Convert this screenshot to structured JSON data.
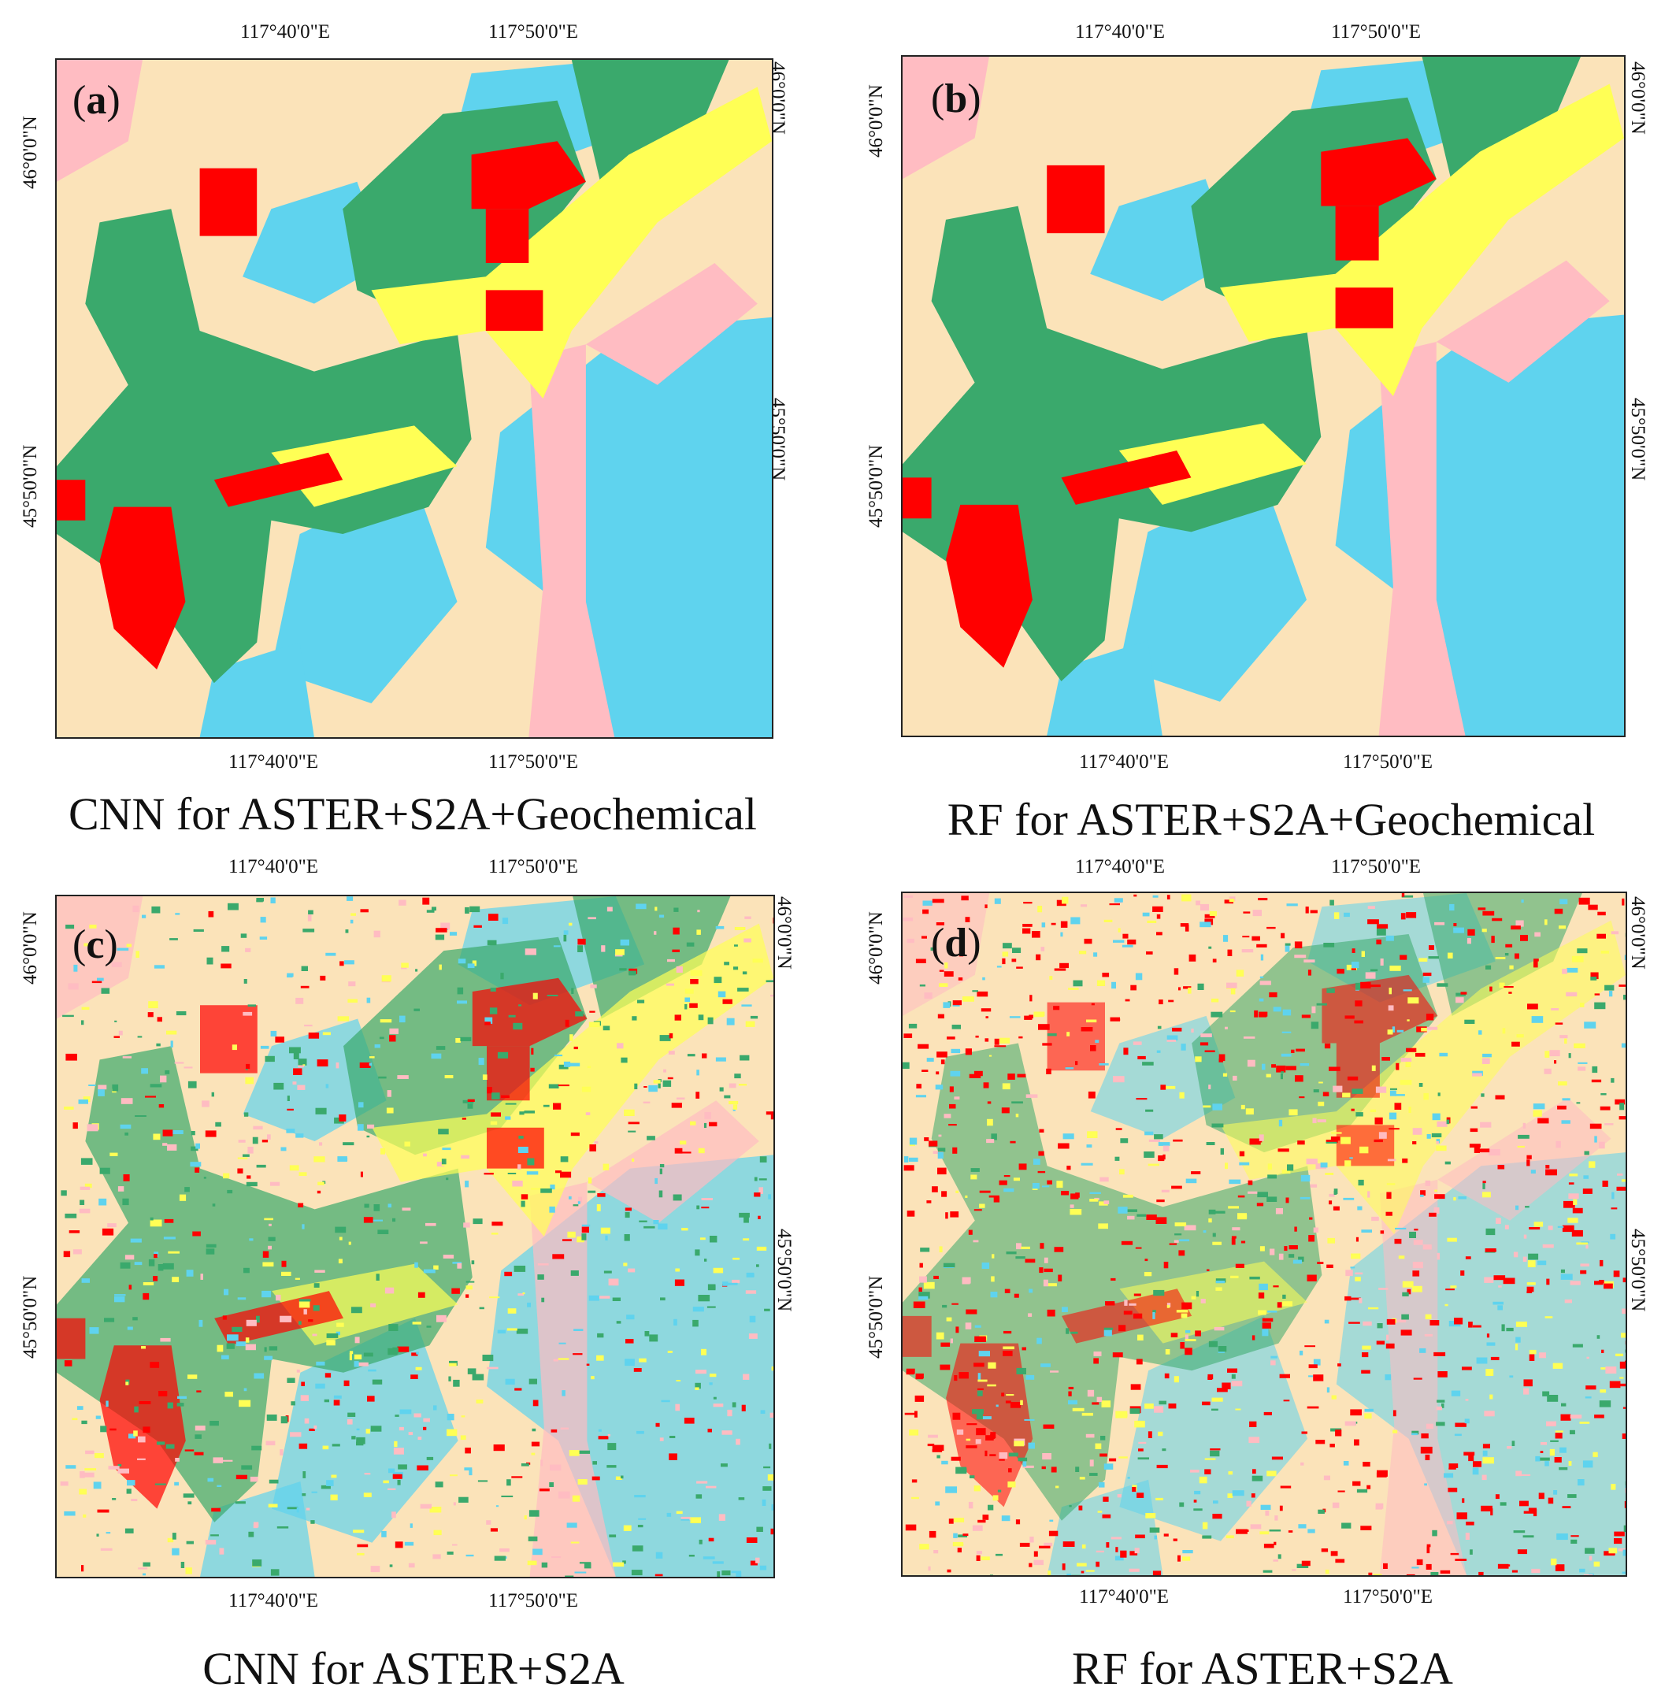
{
  "colors": {
    "background_class": "#fbe3b9",
    "green_class": "#3aa96c",
    "red_class": "#ff0000",
    "blue_class": "#5fd3ee",
    "yellow_class": "#ffff55",
    "pink_class": "#ffbcc2"
  },
  "panels": [
    {
      "id": "a",
      "label_open": "(",
      "label_letter": "a",
      "label_close": ")",
      "caption": "CNN for ASTER+S2A+Geochemical",
      "lon_ticks": [
        "117°40'0\"E",
        "117°50'0\"E"
      ],
      "lat_ticks": [
        "46°0'0\"N",
        "45°50'0\"N"
      ],
      "texture": "smooth"
    },
    {
      "id": "b",
      "label_open": "(",
      "label_letter": "b",
      "label_close": ")",
      "caption": "RF for ASTER+S2A+Geochemical",
      "lon_ticks": [
        "117°40'0\"E",
        "117°50'0\"E"
      ],
      "lat_ticks": [
        "46°0'0\"N",
        "45°50'0\"N"
      ],
      "texture": "smooth"
    },
    {
      "id": "c",
      "label_open": "(",
      "label_letter": "c",
      "label_close": ")",
      "caption": "CNN for ASTER+S2A",
      "lon_ticks": [
        "117°40'0\"E",
        "117°50'0\"E"
      ],
      "lat_ticks": [
        "46°0'0\"N",
        "45°50'0\"N"
      ],
      "texture": "speckled"
    },
    {
      "id": "d",
      "label_open": "(",
      "label_letter": "d",
      "label_close": ")",
      "caption": "RF for ASTER+S2A",
      "lon_ticks": [
        "117°40'0\"E",
        "117°50'0\"E"
      ],
      "lat_ticks": [
        "46°0'0\"N",
        "45°50'0\"N"
      ],
      "texture": "noisy"
    }
  ]
}
